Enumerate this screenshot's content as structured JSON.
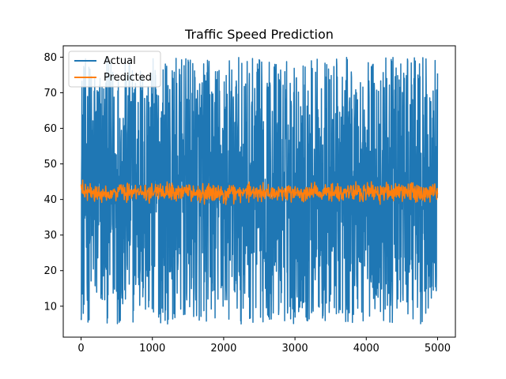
{
  "chart_data": {
    "type": "line",
    "title": "Traffic Speed Prediction",
    "xlabel": "",
    "ylabel": "",
    "xlim": [
      -250,
      5250
    ],
    "ylim": [
      1.3,
      83.2
    ],
    "x_ticks": [
      0,
      1000,
      2000,
      3000,
      4000,
      5000
    ],
    "y_ticks": [
      10,
      20,
      30,
      40,
      50,
      60,
      70,
      80
    ],
    "grid": false,
    "legend": {
      "placement": "top-left",
      "entries": [
        "Actual",
        "Predicted"
      ]
    },
    "series": [
      {
        "name": "Actual",
        "color": "#1f77b4",
        "x_range": [
          0,
          5000
        ],
        "n_points": 5000,
        "min": 5,
        "max": 80,
        "distribution": "uniform noise"
      },
      {
        "name": "Predicted",
        "color": "#ff7f0e",
        "x_range": [
          0,
          5000
        ],
        "n_points": 5000,
        "mean": 42,
        "min": 38.5,
        "max": 45.5
      }
    ]
  }
}
